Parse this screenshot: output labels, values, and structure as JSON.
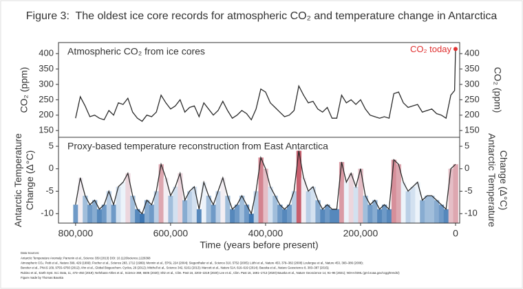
{
  "title": "Figure 3:  The oldest ice core records for atmospheric CO₂ and temperature change in Antarctica",
  "chart_data": [
    {
      "type": "line",
      "label": "Atmospheric CO₂ from ice cores",
      "ylabel": [
        "CO₂ (ppm)"
      ],
      "color": "#2a2a2a",
      "annotation": "CO₂ today",
      "annotation_color": "#e03030",
      "xlim": [
        836000,
        -8700
      ],
      "ylim": [
        128,
        436
      ],
      "yticks": [
        150,
        200,
        250,
        300,
        350,
        400
      ],
      "x": [
        800000,
        790000,
        780000,
        770000,
        760000,
        750000,
        740000,
        730000,
        720000,
        710000,
        700000,
        690000,
        680000,
        670000,
        660000,
        650000,
        640000,
        630000,
        620000,
        610000,
        600000,
        590000,
        580000,
        570000,
        560000,
        550000,
        540000,
        530000,
        520000,
        510000,
        500000,
        490000,
        480000,
        470000,
        460000,
        450000,
        440000,
        430000,
        420000,
        410000,
        400000,
        390000,
        380000,
        370000,
        360000,
        350000,
        340000,
        330000,
        320000,
        310000,
        300000,
        290000,
        280000,
        270000,
        260000,
        250000,
        240000,
        230000,
        220000,
        210000,
        200000,
        190000,
        180000,
        170000,
        160000,
        150000,
        140000,
        130000,
        120000,
        110000,
        100000,
        90000,
        80000,
        70000,
        60000,
        50000,
        40000,
        30000,
        20000,
        10000,
        2000,
        0
      ],
      "values": [
        190,
        260,
        230,
        195,
        200,
        190,
        185,
        215,
        200,
        240,
        235,
        255,
        210,
        190,
        180,
        200,
        195,
        210,
        265,
        240,
        220,
        230,
        250,
        210,
        225,
        230,
        195,
        240,
        220,
        200,
        215,
        245,
        215,
        190,
        200,
        215,
        205,
        185,
        220,
        285,
        275,
        240,
        225,
        210,
        195,
        200,
        215,
        295,
        265,
        240,
        245,
        220,
        210,
        225,
        190,
        190,
        265,
        240,
        250,
        235,
        250,
        220,
        200,
        195,
        190,
        195,
        190,
        270,
        275,
        240,
        225,
        230,
        235,
        210,
        215,
        220,
        205,
        200,
        190,
        265,
        280,
        415
      ]
    },
    {
      "type": "line",
      "label": "Proxy-based temperature reconstruction from East Antarctica",
      "ylabel": [
        "Antarctic Temperature",
        "Change (Δ°C)"
      ],
      "color": "#2a2a2a",
      "stripe_colors": [
        "#08519c",
        "#f7fbff",
        "#b2182b"
      ],
      "xlim": [
        836000,
        -8700
      ],
      "ylim": [
        -12.1,
        7
      ],
      "yticks": [
        -10,
        -5,
        0,
        5
      ],
      "xlabel": "Time (years before present)",
      "xticks": [
        {
          "value": 800000,
          "label": "800,000"
        },
        {
          "value": 600000,
          "label": "600,000"
        },
        {
          "value": 400000,
          "label": "400,000"
        },
        {
          "value": 200000,
          "label": "200,000"
        },
        0
      ],
      "x": [
        800000,
        790000,
        780000,
        770000,
        760000,
        750000,
        740000,
        730000,
        720000,
        710000,
        700000,
        690000,
        680000,
        670000,
        660000,
        650000,
        640000,
        630000,
        620000,
        610000,
        600000,
        590000,
        580000,
        570000,
        560000,
        550000,
        540000,
        530000,
        520000,
        510000,
        500000,
        490000,
        480000,
        470000,
        460000,
        450000,
        440000,
        430000,
        420000,
        410000,
        400000,
        390000,
        380000,
        370000,
        360000,
        350000,
        340000,
        330000,
        320000,
        310000,
        300000,
        290000,
        280000,
        270000,
        260000,
        250000,
        240000,
        230000,
        220000,
        210000,
        200000,
        190000,
        180000,
        170000,
        160000,
        150000,
        140000,
        130000,
        120000,
        110000,
        100000,
        90000,
        80000,
        70000,
        60000,
        50000,
        40000,
        30000,
        20000,
        10000,
        0
      ],
      "values": [
        -8,
        -2,
        -6,
        -8,
        -7,
        -9,
        -8,
        -5,
        -8,
        -4,
        -3,
        -1,
        -6,
        -9,
        -10,
        -7,
        -8,
        -5,
        1,
        -2,
        -6,
        -4,
        -1,
        -7,
        -5,
        -4,
        -9,
        -3,
        -6,
        -8,
        -5,
        -2,
        -6,
        -9,
        -8,
        -6,
        -8,
        -10,
        -5,
        2.5,
        0,
        -4,
        -6,
        -8,
        -9,
        -8,
        -5,
        4,
        -2,
        -5,
        -4,
        -7,
        -9,
        -8,
        -9,
        -9,
        1.5,
        -3,
        -1,
        -4,
        0,
        -6,
        -8,
        -7,
        -9,
        -8,
        -9,
        2,
        1,
        -3,
        -5,
        -4,
        -3,
        -7,
        -6,
        -6,
        -7,
        -8,
        -9,
        0,
        1
      ]
    }
  ],
  "sources": [
    "Data Sources:",
    "Antarctic Temperature Anomaly: Parrenin et al., Science 339 (2013) DOI: 10.1126/science.1226368",
    "Atmospheric CO₂: Petit et al., Nature 399, 429 (1999); Fischer et al., Science 283, 1712 (1999); Monnin et al., EPSL 224 (2004); Siegenthaler et al., Science 310, 5752 (2005); Lüthi et al., Nature 453, 379–382 (2008) Loulergue et al., Nature 453, 383–386 (2008);",
    "Bereiter et al., PNAS 109, 9755–9760 (2012); Ahn et al., Global Biogeochem. Cycles, 26 (2012); Mitchell et al., Science 342, 6161 (2013); Marcott et al., Nature 514, 616–619 (2014); Bauska et al., Nature Geoscience 8, 383–387 (2015);",
    "Rubino et al., Earth Syst. Sci. Data, 11, 473–492 (2019); Nehrbass-Ahles et al., Science 369, 6506 (2020); Shin et al., Clim. Past 16, 2203–2219 (2020) Lee et al., Clim. Past 16, 1691–1713 (2020) Bauska et al., Nature Geoscience 14, 91–96 (2021); NOAA/GML (gml.noaa.gov/ccgg/trends/)",
    "Figure made by Thomas Bauska"
  ]
}
